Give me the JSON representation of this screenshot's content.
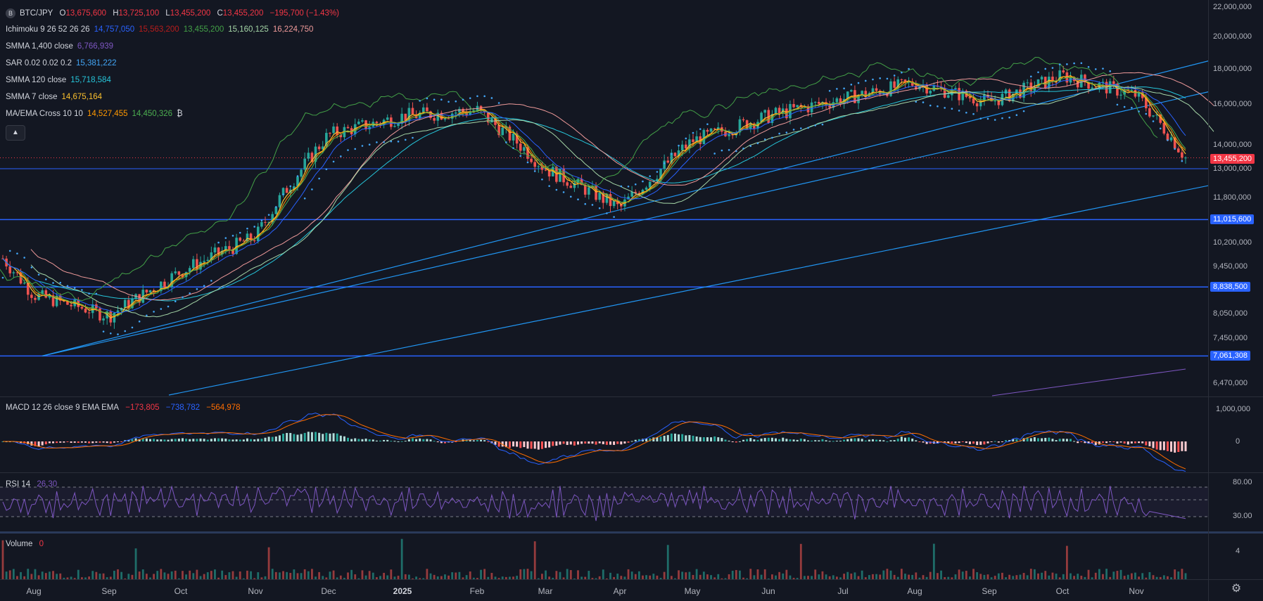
{
  "symbol": {
    "name": "BTC/JPY",
    "icon": "bitcoin-icon",
    "open_label": "O",
    "open": "13,675,600",
    "high_label": "H",
    "high": "13,725,100",
    "low_label": "L",
    "low": "13,455,200",
    "close_label": "C",
    "close": "13,455,200",
    "change": "−195,700 (−1.43%)"
  },
  "indicators": [
    {
      "name": "Ichimoku 9 26 52 26 26",
      "values": [
        {
          "text": "14,757,050",
          "color": "#2962ff"
        },
        {
          "text": "15,563,200",
          "color": "#b71c1c"
        },
        {
          "text": "13,455,200",
          "color": "#43a047"
        },
        {
          "text": "15,160,125",
          "color": "#a5d6a7"
        },
        {
          "text": "16,224,750",
          "color": "#ef9a9a"
        }
      ]
    },
    {
      "name": "SMMA 1,400 close",
      "values": [
        {
          "text": "6,766,939",
          "color": "#7e57c2"
        }
      ]
    },
    {
      "name": "SAR 0.02 0.02 0.2",
      "values": [
        {
          "text": "15,381,222",
          "color": "#42a5f5"
        }
      ]
    },
    {
      "name": "SMMA 120 close",
      "values": [
        {
          "text": "15,718,584",
          "color": "#26c6da"
        }
      ]
    },
    {
      "name": "SMMA 7 close",
      "values": [
        {
          "text": "14,675,164",
          "color": "#fbc02d"
        }
      ]
    },
    {
      "name": "MA/EMA Cross 10 10",
      "values": [
        {
          "text": "14,527,455",
          "color": "#ff9800"
        },
        {
          "text": "14,450,326",
          "color": "#4caf50"
        },
        {
          "text": "₿",
          "color": "#d1d4dc"
        }
      ]
    }
  ],
  "collapse_icon": "chevron-up-icon",
  "price_axis": [
    "22,000,000",
    "20,000,000",
    "18,000,000",
    "16,000,000",
    "14,000,000",
    "13,000,000",
    "11,800,000",
    "10,200,000",
    "9,450,000",
    "8,050,000",
    "7,450,000",
    "6,470,000"
  ],
  "price_tags": [
    {
      "text": "13,455,200",
      "color": "#f23645"
    },
    {
      "text": "11,015,600",
      "color": "#2962ff"
    },
    {
      "text": "8,838,500",
      "color": "#2962ff"
    },
    {
      "text": "7,061,308",
      "color": "#2962ff"
    }
  ],
  "macd": {
    "label": "MACD 12 26 close 9 EMA EMA",
    "values": [
      {
        "text": "−173,805",
        "color": "#f23645"
      },
      {
        "text": "−738,782",
        "color": "#2962ff"
      },
      {
        "text": "−564,978",
        "color": "#ff6d00"
      }
    ],
    "axis": [
      "1,000,000",
      "0"
    ]
  },
  "rsi": {
    "label": "RSI 14",
    "value": "26.30",
    "value_color": "#7e57c2",
    "axis": [
      "80.00",
      "30.00"
    ]
  },
  "volume": {
    "label": "Volume",
    "value": "0",
    "value_color": "#f23645",
    "axis": [
      "4"
    ]
  },
  "time_axis": [
    "Aug",
    "Sep",
    "Oct",
    "Nov",
    "Dec",
    "2025",
    "Feb",
    "Mar",
    "Apr",
    "May",
    "Jun",
    "Jul",
    "Aug",
    "Sep",
    "Oct",
    "Nov"
  ],
  "settings_icon": "gear-icon",
  "colors": {
    "up": "#26a69a",
    "down": "#ef5350",
    "background": "#131722",
    "hline": "#2962ff"
  },
  "chart_data": {
    "type": "candlestick",
    "series_name": "BTC/JPY",
    "x": [
      "Aug",
      "Sep",
      "Oct",
      "Nov",
      "Dec",
      "2025",
      "Feb",
      "Mar",
      "Apr",
      "May",
      "Jun",
      "Jul",
      "Aug",
      "Sep",
      "Oct",
      "Nov"
    ],
    "close": [
      8600000,
      8400000,
      9000000,
      10600000,
      14500000,
      15000000,
      15500000,
      12500000,
      11700000,
      14000000,
      15300000,
      16200000,
      17000000,
      16300000,
      17500000,
      13455200
    ],
    "ylim": [
      6200000,
      22000000
    ],
    "horizontal_levels": [
      13000000,
      11015600,
      8838500,
      7061308
    ],
    "rsi_last": 26.3,
    "legend_position": "top-left"
  }
}
